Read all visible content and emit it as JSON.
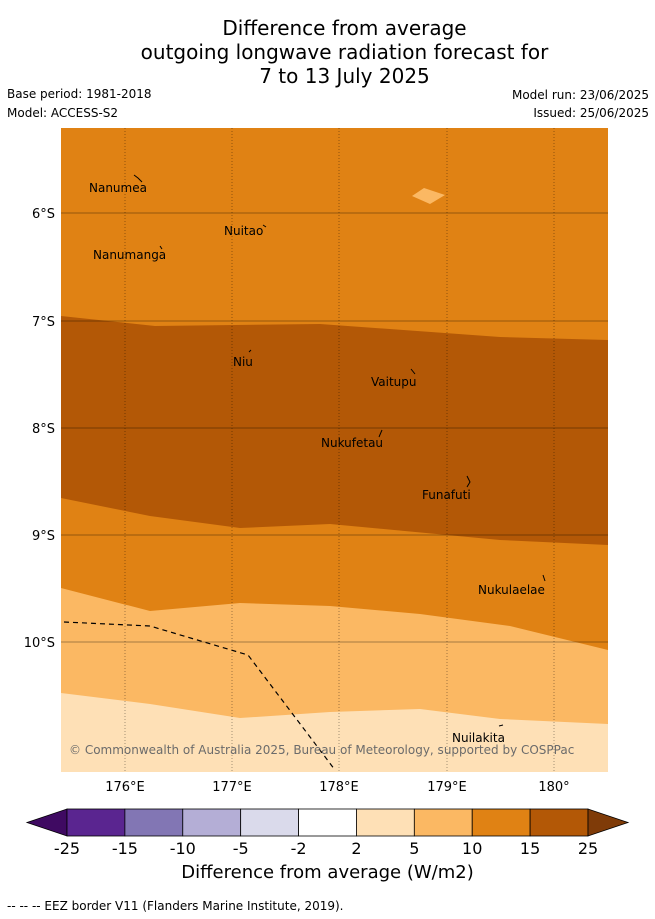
{
  "title": {
    "line1": "Difference from average",
    "line2": "outgoing longwave radiation forecast for",
    "line3": "7 to 13 July 2025"
  },
  "meta": {
    "base_period": "Base period: 1981-2018",
    "model": "Model: ACCESS-S2",
    "model_run": "Model run: 23/06/2025",
    "issued": "Issued: 25/06/2025"
  },
  "map": {
    "lat_ticks": [
      "6°S",
      "7°S",
      "8°S",
      "9°S",
      "10°S"
    ],
    "lon_ticks": [
      "176°E",
      "177°E",
      "178°E",
      "179°E",
      "180°"
    ],
    "islands": [
      "Nanumea",
      "Nuitao",
      "Nanumanga",
      "Niu",
      "Vaitupu",
      "Nukufetau",
      "Funafuti",
      "Nukulaelae",
      "Nuilakita"
    ],
    "copyright": "© Commonwealth of Australia 2025, Bureau of Meteorology, supported by COSPPac"
  },
  "colorbar": {
    "ticks": [
      "-25",
      "-15",
      "-10",
      "-5",
      "-2",
      "2",
      "5",
      "10",
      "15",
      "25"
    ],
    "colors": [
      "#3f0a62",
      "#5a2590",
      "#8276b4",
      "#b4aed6",
      "#dadaeb",
      "#ffffff",
      "#fee0b6",
      "#fbb863",
      "#e08214",
      "#b35806",
      "#7f3b08"
    ],
    "label": "Difference from average (W/m2)"
  },
  "footnote": "--  --  -- EEZ border V11 (Flanders Marine Institute, 2019)."
}
